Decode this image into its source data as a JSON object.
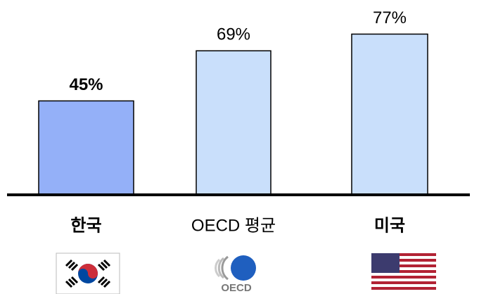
{
  "chart_data": {
    "type": "bar",
    "categories": [
      "한국",
      "OECD 평균",
      "미국"
    ],
    "values": [
      45,
      69,
      77
    ],
    "value_labels": [
      "45%",
      "69%",
      "77%"
    ],
    "colors": [
      "#94b0f8",
      "#c9dffb",
      "#c9dffb"
    ],
    "ylim": [
      0,
      93
    ]
  },
  "logo_text": "OECD"
}
